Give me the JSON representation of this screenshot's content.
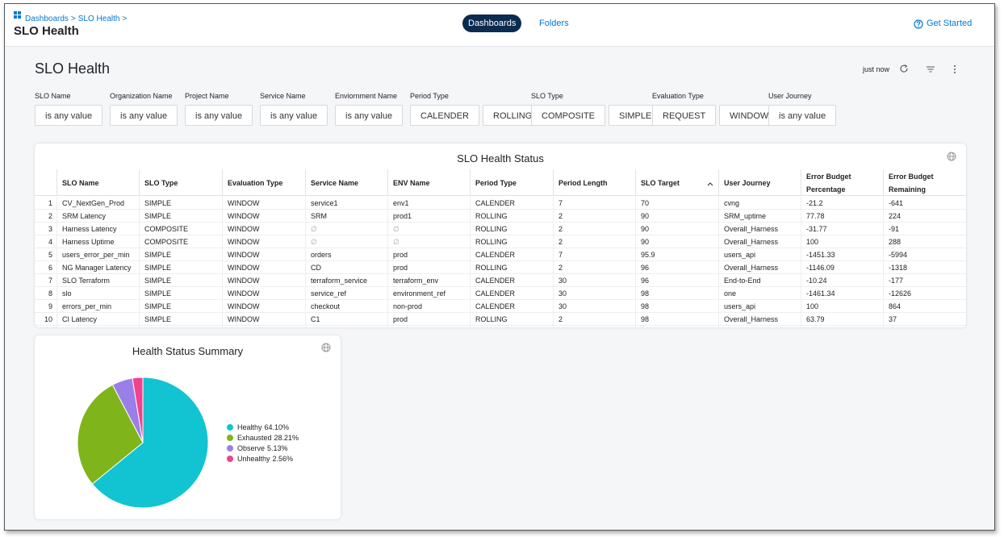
{
  "breadcrumb": [
    "Dashboards",
    "SLO Health"
  ],
  "header": {
    "title": "SLO Health",
    "tabs": [
      "Dashboards",
      "Folders"
    ],
    "action": "Get Started"
  },
  "dashboard": {
    "title": "SLO Health",
    "refreshed": "just now"
  },
  "filters": [
    {
      "label": "SLO Name",
      "options": [
        "is any value"
      ]
    },
    {
      "label": "Organization Name",
      "options": [
        "is any value"
      ]
    },
    {
      "label": "Project Name",
      "options": [
        "is any value"
      ]
    },
    {
      "label": "Service Name",
      "options": [
        "is any value"
      ]
    },
    {
      "label": "Enviornment Name",
      "options": [
        "is any value"
      ]
    },
    {
      "label": "Period Type",
      "options": [
        "CALENDER",
        "ROLLING"
      ]
    },
    {
      "label": "SLO Type",
      "options": [
        "COMPOSITE",
        "SIMPLE"
      ]
    },
    {
      "label": "Evaluation Type",
      "options": [
        "REQUEST",
        "WINDOW"
      ]
    },
    {
      "label": "User Journey",
      "options": [
        "is any value"
      ]
    }
  ],
  "table": {
    "title": "SLO Health Status",
    "columns": [
      "SLO Name",
      "SLO Type",
      "Evaluation Type",
      "Service Name",
      "ENV Name",
      "Period Type",
      "Period Length",
      "SLO Target",
      "User Journey",
      "Error Budget Percentage",
      "Error Budget Remaining"
    ],
    "rows": [
      [
        "1",
        "CV_NextGen_Prod",
        "SIMPLE",
        "WINDOW",
        "service1",
        "env1",
        "CALENDER",
        "7",
        "70",
        "cvng",
        "-21.2",
        "-641"
      ],
      [
        "2",
        "SRM Latency",
        "SIMPLE",
        "WINDOW",
        "SRM",
        "prod1",
        "ROLLING",
        "2",
        "90",
        "SRM_uptime",
        "77.78",
        "224"
      ],
      [
        "3",
        "Harness Latency",
        "COMPOSITE",
        "WINDOW",
        "∅",
        "∅",
        "ROLLING",
        "2",
        "90",
        "Overall_Harness",
        "-31.77",
        "-91"
      ],
      [
        "4",
        "Harness Uptime",
        "COMPOSITE",
        "WINDOW",
        "∅",
        "∅",
        "ROLLING",
        "2",
        "90",
        "Overall_Harness",
        "100",
        "288"
      ],
      [
        "5",
        "users_error_per_min",
        "SIMPLE",
        "WINDOW",
        "orders",
        "prod",
        "CALENDER",
        "7",
        "95.9",
        "users_api",
        "-1451.33",
        "-5994"
      ],
      [
        "6",
        "NG Manager Latency",
        "SIMPLE",
        "WINDOW",
        "CD",
        "prod",
        "ROLLING",
        "2",
        "96",
        "Overall_Harness",
        "-1146.09",
        "-1318"
      ],
      [
        "7",
        "SLO Terraform",
        "SIMPLE",
        "WINDOW",
        "terraform_service",
        "terraform_env",
        "CALENDER",
        "30",
        "96",
        "End-to-End",
        "-10.24",
        "-177"
      ],
      [
        "8",
        "slo",
        "SIMPLE",
        "WINDOW",
        "service_ref",
        "environment_ref",
        "CALENDER",
        "30",
        "98",
        "one",
        "-1461.34",
        "-12626"
      ],
      [
        "9",
        "errors_per_min",
        "SIMPLE",
        "WINDOW",
        "checkout",
        "non-prod",
        "CALENDER",
        "30",
        "98",
        "users_api",
        "100",
        "864"
      ],
      [
        "10",
        "CI Latency",
        "SIMPLE",
        "WINDOW",
        "C1",
        "prod",
        "ROLLING",
        "2",
        "98",
        "Overall_Harness",
        "63.79",
        "37"
      ]
    ]
  },
  "chart_data": {
    "type": "pie",
    "title": "Health Status Summary",
    "categories": [
      "Healthy",
      "Exhausted",
      "Observe",
      "Unhealthy"
    ],
    "values": [
      64.1,
      28.21,
      5.13,
      2.56
    ],
    "value_labels": [
      "64.10%",
      "28.21%",
      "5.13%",
      "2.56%"
    ],
    "colors": [
      "#12c4d2",
      "#7fb51a",
      "#9b7fe8",
      "#f0428f"
    ]
  }
}
